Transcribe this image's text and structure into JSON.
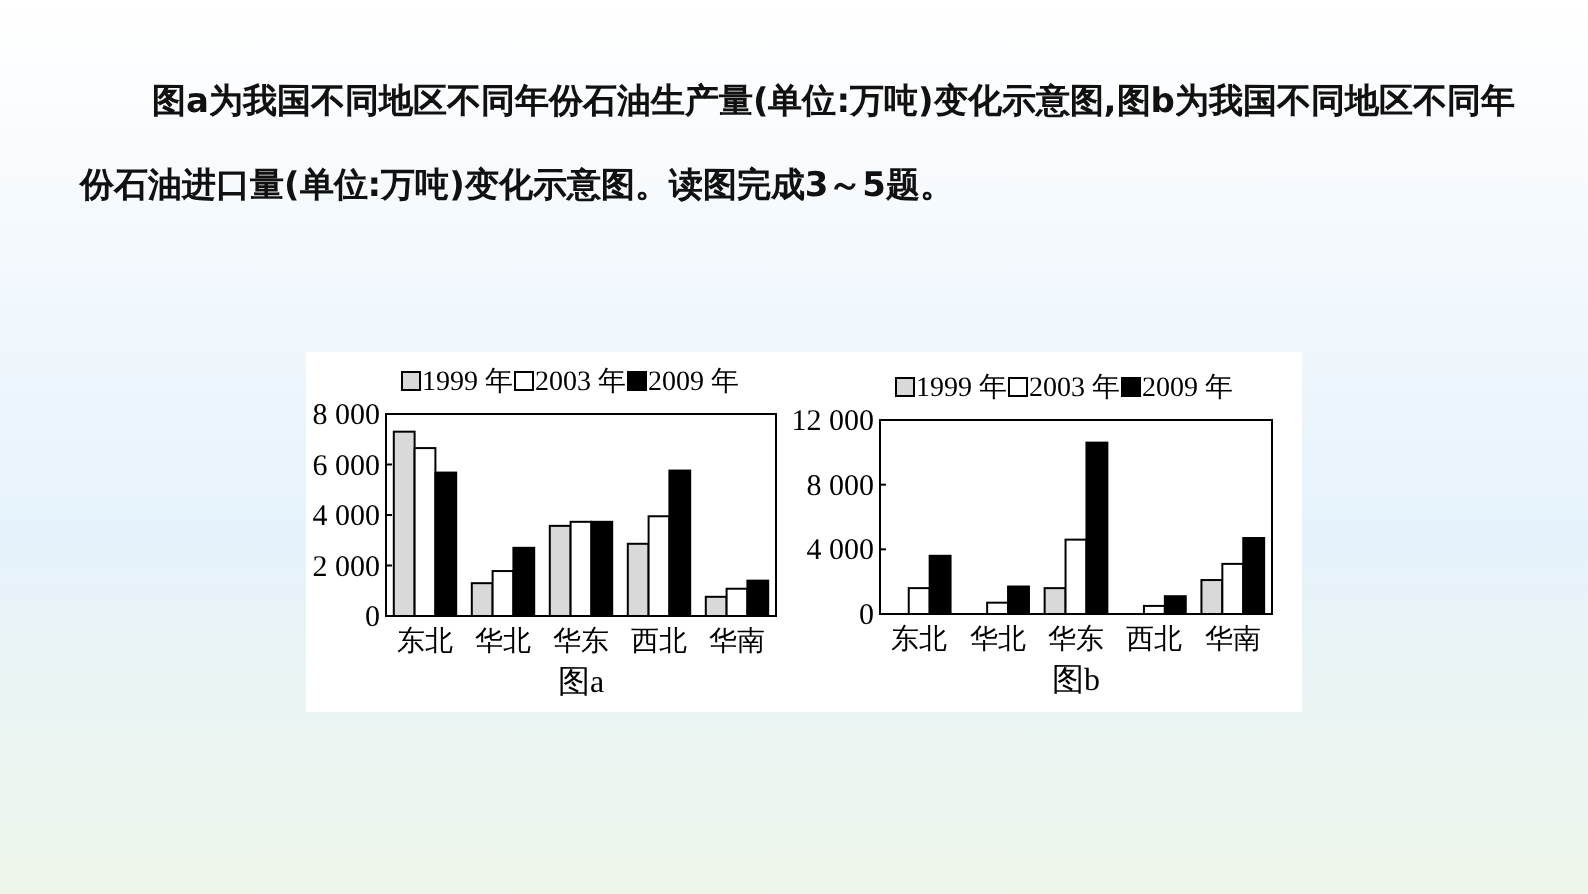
{
  "chart_data": [
    {
      "type": "bar",
      "xlabel": "图a",
      "annotations": [
        "图a为我国不同地区不同年份石油生产量(单位:万吨)变化示意图,图b为我国不同地区不同年份石油进口量(单位:万吨)变化示意图。读图完成3～5题。"
      ],
      "categories": [
        "东北",
        "华北",
        "华东",
        "西北",
        "华南"
      ],
      "series": [
        {
          "name": "1999 年",
          "color": "#d9d9d9",
          "values": [
            7300,
            1300,
            3570,
            2860,
            760
          ]
        },
        {
          "name": "2003 年",
          "color": "#ffffff",
          "values": [
            6650,
            1780,
            3730,
            3950,
            1080
          ]
        },
        {
          "name": "2009 年",
          "color": "#000000",
          "values": [
            5680,
            2700,
            3730,
            5760,
            1400
          ]
        }
      ],
      "ylim": [
        0,
        8000
      ],
      "yticks": [
        0,
        {
          "value": 2000,
          "label": "2 000"
        },
        {
          "value": 4000,
          "label": "4 000"
        },
        {
          "value": 6000,
          "label": "6 000"
        },
        {
          "value": 8000,
          "label": "8 000"
        }
      ],
      "legend": "top",
      "grid": false
    },
    {
      "type": "bar",
      "xlabel": "图b",
      "categories": [
        "东北",
        "华北",
        "华东",
        "西北",
        "华南"
      ],
      "series": [
        {
          "name": "1999 年",
          "color": "#d9d9d9",
          "values": [
            null,
            null,
            1600,
            null,
            2100
          ]
        },
        {
          "name": "2003 年",
          "color": "#ffffff",
          "values": [
            1600,
            700,
            4600,
            500,
            3100
          ]
        },
        {
          "name": "2009 年",
          "color": "#000000",
          "values": [
            3600,
            1700,
            10600,
            1100,
            4700
          ]
        }
      ],
      "ylim": [
        0,
        12000
      ],
      "yticks": [
        0,
        {
          "value": 4000,
          "label": "4 000"
        },
        {
          "value": 8000,
          "label": "8 000"
        },
        {
          "value": 12000,
          "label": "12 000"
        }
      ],
      "legend": "top",
      "grid": false
    }
  ]
}
